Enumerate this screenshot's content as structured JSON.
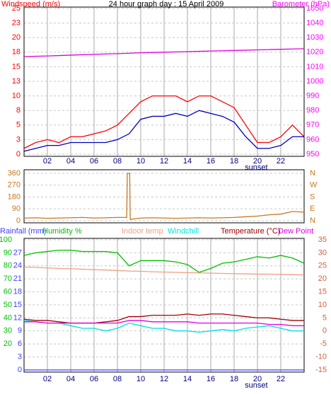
{
  "chart_data": [
    {
      "type": "line",
      "title": "24 hour graph day : 15 April 2009",
      "ylabel": "Windspeed (m/s)",
      "y2label": "Barometer (hPa)",
      "x": [
        0,
        1,
        2,
        3,
        4,
        5,
        6,
        7,
        8,
        9,
        10,
        11,
        12,
        13,
        14,
        15,
        16,
        17,
        18,
        19,
        20,
        21,
        22,
        23,
        24
      ],
      "xlim": [
        0,
        24
      ],
      "xticks": [
        {
          "value": 2,
          "label": "02"
        },
        {
          "value": 4,
          "label": "04"
        },
        {
          "value": 6,
          "label": "06"
        },
        {
          "value": 8,
          "label": "08"
        },
        {
          "value": 10,
          "label": "10"
        },
        {
          "value": 12,
          "label": "12"
        },
        {
          "value": 14,
          "label": "14"
        },
        {
          "value": 16,
          "label": "16"
        },
        {
          "value": 18,
          "label": "18"
        },
        {
          "value": 20,
          "label": "20"
        },
        {
          "value": 22,
          "label": "22"
        }
      ],
      "ylim": [
        0,
        25
      ],
      "yticks": [
        0,
        {
          "value": 2.5,
          "label": "3"
        },
        5,
        {
          "value": 7.5,
          "label": "8"
        },
        10,
        {
          "value": 12.5,
          "label": "13"
        },
        15,
        {
          "value": 17.5,
          "label": "18"
        },
        20,
        {
          "value": 22.5,
          "label": "23"
        },
        25
      ],
      "y2lim": [
        950,
        1050
      ],
      "y2ticks": [
        950,
        960,
        970,
        980,
        990,
        1000,
        1010,
        1020,
        1030,
        1040,
        1050
      ],
      "grid": true,
      "annotations": [
        {
          "text": "sunset",
          "x": 19.9
        }
      ],
      "series": [
        {
          "color": "#ff0000",
          "values": [
            1,
            2,
            2.5,
            2,
            3,
            3,
            3.5,
            4,
            5,
            7,
            9,
            10,
            10,
            10,
            9,
            10,
            10,
            9,
            8,
            5,
            2,
            2,
            3,
            5,
            3
          ]
        },
        {
          "color": "#0000c0",
          "values": [
            0.5,
            1,
            1.5,
            1.5,
            2,
            2,
            2,
            2,
            2.5,
            3.5,
            6,
            6.5,
            6.5,
            7,
            6.5,
            7.5,
            7,
            6.5,
            5.5,
            3,
            1,
            1,
            1.5,
            3,
            3
          ]
        },
        {
          "color": "#e000e0",
          "axis": "y2",
          "values": [
            1017.0,
            1017.2,
            1017.4,
            1017.7,
            1018.0,
            1018.3,
            1018.5,
            1018.8,
            1019.0,
            1019.3,
            1019.6,
            1019.8,
            1020.0,
            1020.2,
            1020.4,
            1020.6,
            1020.8,
            1021.0,
            1021.2,
            1021.4,
            1021.6,
            1021.8,
            1022.0,
            1022.2,
            1022.4
          ]
        }
      ]
    },
    {
      "type": "line",
      "x": [
        0,
        1,
        2,
        3,
        4,
        5,
        6,
        7,
        8,
        8.8,
        8.85,
        9.05,
        9.1,
        10,
        11,
        12,
        13,
        14,
        15,
        16,
        17,
        18,
        19,
        20,
        21,
        22,
        23,
        24
      ],
      "xlim": [
        0,
        24
      ],
      "ylim": [
        0,
        360
      ],
      "yticks": [
        0,
        90,
        180,
        270,
        360
      ],
      "y2lim": [
        0,
        360
      ],
      "y2ticks": [
        {
          "value": 0,
          "label": "N"
        },
        {
          "value": 90,
          "label": "E"
        },
        {
          "value": 180,
          "label": "S"
        },
        {
          "value": 270,
          "label": "W"
        },
        {
          "value": 360,
          "label": "N"
        }
      ],
      "grid": true,
      "series": [
        {
          "color": "#c87820",
          "values": [
            20,
            22,
            18,
            20,
            22,
            25,
            20,
            22,
            25,
            25,
            360,
            360,
            10,
            20,
            22,
            20,
            18,
            20,
            22,
            20,
            22,
            25,
            30,
            35,
            45,
            50,
            70,
            65
          ]
        }
      ]
    },
    {
      "type": "line",
      "x": [
        0,
        1,
        2,
        3,
        4,
        5,
        6,
        7,
        8,
        9,
        10,
        11,
        12,
        13,
        14,
        15,
        16,
        17,
        18,
        19,
        20,
        21,
        22,
        23,
        24
      ],
      "xlim": [
        0,
        24
      ],
      "xticks": [
        {
          "value": 2,
          "label": "02"
        },
        {
          "value": 4,
          "label": "04"
        },
        {
          "value": 6,
          "label": "06"
        },
        {
          "value": 8,
          "label": "08"
        },
        {
          "value": 10,
          "label": "10"
        },
        {
          "value": 12,
          "label": "12"
        },
        {
          "value": 14,
          "label": "14"
        },
        {
          "value": 16,
          "label": "16"
        },
        {
          "value": 18,
          "label": "18"
        },
        {
          "value": 20,
          "label": "20"
        },
        {
          "value": 22,
          "label": "22"
        }
      ],
      "ylim": [
        0,
        30
      ],
      "yticks": [
        0,
        3,
        6,
        9,
        12,
        15,
        18,
        21,
        24,
        27
      ],
      "y3lim": [
        0,
        100
      ],
      "y3ticks": [
        20,
        30,
        40,
        50,
        60,
        70,
        80,
        90,
        100
      ],
      "y2lim": [
        -15,
        35
      ],
      "y2ticks": [
        -15,
        -10,
        -5,
        0,
        5,
        10,
        15,
        20,
        25,
        30,
        35
      ],
      "grid": true,
      "annotations": [
        {
          "text": "sunset",
          "x": 19.9
        }
      ],
      "series": [
        {
          "name": "Rainfall (mm)",
          "color": "#4040ff",
          "values": [
            0,
            0,
            0,
            0,
            0,
            0,
            0,
            0,
            0,
            0,
            0,
            0,
            0,
            0,
            0,
            0,
            0,
            0,
            0,
            0,
            0,
            0,
            0,
            0,
            0
          ]
        },
        {
          "name": "Humidity %",
          "color": "#00c000",
          "axis": "y3",
          "values": [
            88,
            90,
            91,
            92,
            92,
            91,
            91,
            91,
            90,
            80,
            84,
            84,
            84,
            83,
            81,
            75,
            78,
            82,
            83,
            85,
            87,
            86,
            88,
            86,
            82
          ]
        },
        {
          "name": "Indoor temp",
          "color": "#f0a080",
          "axis": "y2",
          "values": [
            24.5,
            24.4,
            24.2,
            24.0,
            23.9,
            23.7,
            23.5,
            23.4,
            23.2,
            23.0,
            22.9,
            22.7,
            22.6,
            22.5,
            22.4,
            22.3,
            22.2,
            22.1,
            22.0,
            21.9,
            21.8,
            21.8,
            21.7,
            21.6,
            21.5
          ]
        },
        {
          "name": "Windchill",
          "color": "#00e0e0",
          "axis": "y2",
          "values": [
            4,
            3.5,
            3,
            3,
            2,
            1,
            1,
            0,
            1,
            3,
            2,
            1,
            1,
            0,
            0,
            -0.5,
            0,
            0.5,
            0,
            1,
            1.5,
            2,
            1,
            0,
            0
          ]
        },
        {
          "name": "Temperature (°C)",
          "color": "#a00000",
          "axis": "y2",
          "values": [
            4.5,
            4,
            4,
            3.5,
            3,
            3,
            3,
            3.5,
            4,
            5.5,
            5.5,
            6,
            6,
            6,
            6.5,
            6,
            6.5,
            6.5,
            6,
            5.5,
            5,
            5,
            4.5,
            4,
            4
          ]
        },
        {
          "name": "Dew Point",
          "color": "#e000e0",
          "axis": "y2",
          "values": [
            3.5,
            3.5,
            3,
            3,
            3,
            3,
            3,
            3,
            3,
            4,
            4,
            3.5,
            3.5,
            3.5,
            3.5,
            3,
            3,
            3,
            3,
            3,
            3,
            2.5,
            2.5,
            2,
            2
          ]
        }
      ]
    }
  ]
}
